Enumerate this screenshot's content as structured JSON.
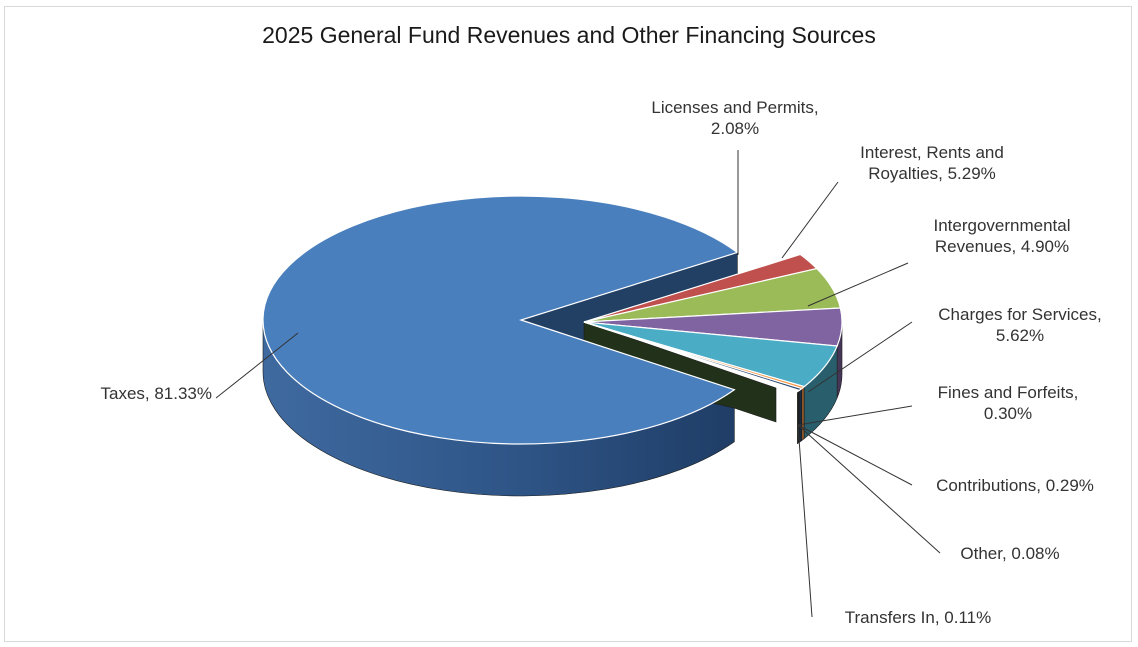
{
  "chart_data": {
    "type": "pie",
    "title": "2025 General Fund Revenues  and Other Financing Sources",
    "series": [
      {
        "slices": [
          {
            "label_lines": [
              "Taxes, 81.33%"
            ],
            "name": "Taxes",
            "value": 81.33,
            "color": "#4a7fbe"
          },
          {
            "label_lines": [
              "Licenses and Permits,",
              "2.08%"
            ],
            "name": "Licenses and Permits",
            "value": 2.08,
            "color": "#c0504d"
          },
          {
            "label_lines": [
              "Interest, Rents and",
              "Royalties, 5.29%"
            ],
            "name": "Interest, Rents and Royalties",
            "value": 5.29,
            "color": "#9bbb59"
          },
          {
            "label_lines": [
              "Intergovernmental",
              "Revenues,  4.90%"
            ],
            "name": "Intergovernmental Revenues",
            "value": 4.9,
            "color": "#8064a2"
          },
          {
            "label_lines": [
              "Charges for Services,",
              "5.62%"
            ],
            "name": "Charges for Services",
            "value": 5.62,
            "color": "#4bacc6"
          },
          {
            "label_lines": [
              "Fines and Forfeits,",
              "0.30%"
            ],
            "name": "Fines and Forfeits",
            "value": 0.3,
            "color": "#f79646"
          },
          {
            "label_lines": [
              "Contributions,  0.29%"
            ],
            "name": "Contributions",
            "value": 0.29,
            "color": "#2c4d75"
          },
          {
            "label_lines": [
              "Other,  0.08%"
            ],
            "name": "Other",
            "value": 0.08,
            "color": "#772c2a"
          },
          {
            "label_lines": [
              "Transfers  In,  0.11%"
            ],
            "name": "Transfers In",
            "value": 0.11,
            "color": "#5f7530"
          }
        ]
      }
    ],
    "style": "3d-exploded",
    "legend": "none",
    "data_labels": "outside-with-leader-lines"
  }
}
